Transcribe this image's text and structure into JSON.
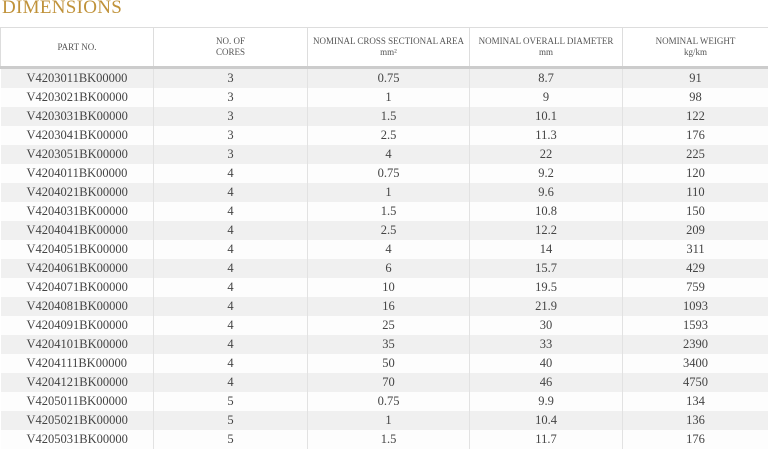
{
  "header": {
    "title": "DIMENSIONS"
  },
  "table": {
    "columns": [
      [
        "PART NO."
      ],
      [
        "NO. OF",
        "CORES"
      ],
      [
        "NOMINAL CROSS SECTIONAL AREA",
        "mm²"
      ],
      [
        "NOMINAL OVERALL DIAMETER",
        "mm"
      ],
      [
        "NOMINAL WEIGHT",
        "kg/km"
      ]
    ],
    "rows": [
      [
        "V4203011BK00000",
        "3",
        "0.75",
        "8.7",
        "91"
      ],
      [
        "V4203021BK00000",
        "3",
        "1",
        "9",
        "98"
      ],
      [
        "V4203031BK00000",
        "3",
        "1.5",
        "10.1",
        "122"
      ],
      [
        "V4203041BK00000",
        "3",
        "2.5",
        "11.3",
        "176"
      ],
      [
        "V4203051BK00000",
        "3",
        "4",
        "22",
        "225"
      ],
      [
        "V4204011BK00000",
        "4",
        "0.75",
        "9.2",
        "120"
      ],
      [
        "V4204021BK00000",
        "4",
        "1",
        "9.6",
        "110"
      ],
      [
        "V4204031BK00000",
        "4",
        "1.5",
        "10.8",
        "150"
      ],
      [
        "V4204041BK00000",
        "4",
        "2.5",
        "12.2",
        "209"
      ],
      [
        "V4204051BK00000",
        "4",
        "4",
        "14",
        "311"
      ],
      [
        "V4204061BK00000",
        "4",
        "6",
        "15.7",
        "429"
      ],
      [
        "V4204071BK00000",
        "4",
        "10",
        "19.5",
        "759"
      ],
      [
        "V4204081BK00000",
        "4",
        "16",
        "21.9",
        "1093"
      ],
      [
        "V4204091BK00000",
        "4",
        "25",
        "30",
        "1593"
      ],
      [
        "V4204101BK00000",
        "4",
        "35",
        "33",
        "2390"
      ],
      [
        "V4204111BK00000",
        "4",
        "50",
        "40",
        "3400"
      ],
      [
        "V4204121BK00000",
        "4",
        "70",
        "46",
        "4750"
      ],
      [
        "V4205011BK00000",
        "5",
        "0.75",
        "9.9",
        "134"
      ],
      [
        "V4205021BK00000",
        "5",
        "1",
        "10.4",
        "136"
      ],
      [
        "V4205031BK00000",
        "5",
        "1.5",
        "11.7",
        "176"
      ]
    ]
  }
}
